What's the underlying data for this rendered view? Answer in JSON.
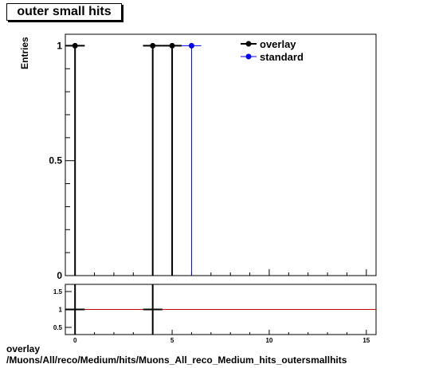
{
  "title": "outer small hits",
  "footer": {
    "line1": "overlay",
    "line2": "/Muons/All/reco/Medium/hits/Muons_All_reco_Medium_hits_outersmallhits"
  },
  "colors": {
    "overlay": "#000000",
    "standard": "#0000ff",
    "ratio_line": "#cc0000"
  },
  "chart_data": [
    {
      "type": "scatter",
      "title": "outer small hits",
      "ylabel": "Entries",
      "xlabel": "",
      "xlim": [
        -0.5,
        15.5
      ],
      "ylim": [
        0,
        1.05
      ],
      "yticks": [
        0,
        0.5,
        1
      ],
      "ytick_labels": [
        "0",
        "0.5",
        "1"
      ],
      "legend": {
        "placement": "top-right",
        "entries": [
          "overlay",
          "standard"
        ]
      },
      "series": [
        {
          "name": "overlay",
          "color": "#000000",
          "x": [
            0,
            4,
            5
          ],
          "y": [
            1,
            1,
            1
          ]
        },
        {
          "name": "standard",
          "color": "#0000ff",
          "x": [
            6
          ],
          "y": [
            1
          ]
        }
      ],
      "grid": false
    },
    {
      "type": "line",
      "title": "",
      "xlabel": "",
      "ylabel": "",
      "xlim": [
        -0.5,
        15.5
      ],
      "ylim": [
        0.3,
        1.7
      ],
      "xticks": [
        0,
        5,
        10,
        15
      ],
      "xtick_labels": [
        "0",
        "5",
        "10",
        "15"
      ],
      "yticks": [
        0.5,
        1,
        1.5
      ],
      "ytick_labels": [
        "0.5",
        "1",
        "1.5"
      ],
      "reference_line": 1,
      "series": [
        {
          "color": "#000000",
          "x": [
            0,
            4
          ],
          "y": [
            1,
            1
          ]
        }
      ],
      "grid": false
    }
  ]
}
